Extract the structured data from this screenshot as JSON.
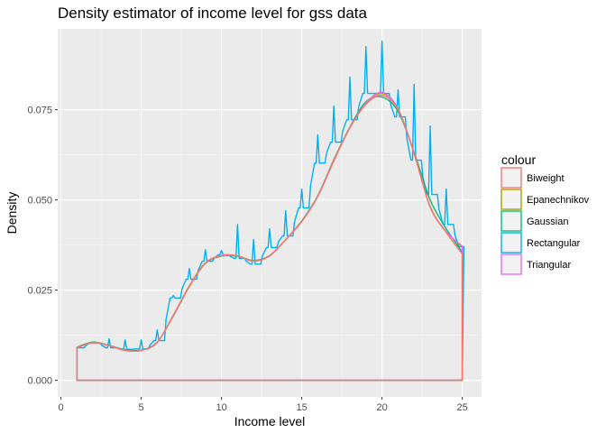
{
  "chart_data": {
    "type": "line",
    "title": "Density estimator of income level for gss data",
    "xlabel": "Income level",
    "ylabel": "Density",
    "xlim": [
      -0.2,
      26.2
    ],
    "ylim": [
      -0.0046,
      0.0974
    ],
    "x_ticks": [
      0,
      5,
      10,
      15,
      20,
      25
    ],
    "x_tick_labels": [
      "0",
      "5",
      "10",
      "15",
      "20",
      "25"
    ],
    "y_ticks": [
      0.0,
      0.025,
      0.05,
      0.075
    ],
    "y_tick_labels": [
      "0.000",
      "0.025",
      "0.050",
      "0.075"
    ],
    "grid": true,
    "legend": {
      "title": "colour",
      "position": "right"
    },
    "series": [
      {
        "name": "Biweight",
        "color": "#F8766D",
        "smooth_points": [
          [
            1,
            0.009
          ],
          [
            2,
            0.0104
          ],
          [
            3,
            0.0096
          ],
          [
            4,
            0.0083
          ],
          [
            5,
            0.0083
          ],
          [
            6,
            0.0105
          ],
          [
            7,
            0.018
          ],
          [
            8,
            0.026
          ],
          [
            9,
            0.0325
          ],
          [
            10,
            0.0345
          ],
          [
            11,
            0.0345
          ],
          [
            12,
            0.033
          ],
          [
            13,
            0.0345
          ],
          [
            14,
            0.039
          ],
          [
            15,
            0.044
          ],
          [
            16,
            0.051
          ],
          [
            17,
            0.061
          ],
          [
            18,
            0.07
          ],
          [
            19,
            0.0765
          ],
          [
            20,
            0.079
          ],
          [
            21,
            0.075
          ],
          [
            22,
            0.063
          ],
          [
            23,
            0.048
          ],
          [
            24,
            0.041
          ],
          [
            25,
            0.035
          ]
        ]
      },
      {
        "name": "Epanechnikov",
        "color": "#A3A500",
        "smooth_points": [
          [
            1,
            0.009
          ],
          [
            2,
            0.0105
          ],
          [
            3,
            0.0096
          ],
          [
            4,
            0.0083
          ],
          [
            5,
            0.0083
          ],
          [
            6,
            0.0105
          ],
          [
            7,
            0.018
          ],
          [
            8,
            0.0262
          ],
          [
            9,
            0.0326
          ],
          [
            10,
            0.0345
          ],
          [
            11,
            0.0345
          ],
          [
            12,
            0.0331
          ],
          [
            13,
            0.0345
          ],
          [
            14,
            0.039
          ],
          [
            15,
            0.044
          ],
          [
            16,
            0.051
          ],
          [
            17,
            0.0608
          ],
          [
            18,
            0.07
          ],
          [
            19,
            0.0768
          ],
          [
            20,
            0.0795
          ],
          [
            21,
            0.0752
          ],
          [
            22,
            0.0628
          ],
          [
            23,
            0.0482
          ],
          [
            24,
            0.0412
          ],
          [
            25,
            0.037
          ]
        ]
      },
      {
        "name": "Gaussian",
        "color": "#00BF7D",
        "smooth_points": [
          [
            1,
            0.0092
          ],
          [
            2,
            0.0106
          ],
          [
            3,
            0.0097
          ],
          [
            4,
            0.0085
          ],
          [
            5,
            0.0084
          ],
          [
            6,
            0.0106
          ],
          [
            7,
            0.0178
          ],
          [
            8,
            0.026
          ],
          [
            9,
            0.0324
          ],
          [
            10,
            0.0344
          ],
          [
            11,
            0.0344
          ],
          [
            12,
            0.0332
          ],
          [
            13,
            0.0346
          ],
          [
            14,
            0.039
          ],
          [
            15,
            0.0442
          ],
          [
            16,
            0.0512
          ],
          [
            17,
            0.0612
          ],
          [
            18,
            0.0702
          ],
          [
            19,
            0.0772
          ],
          [
            20,
            0.0785
          ],
          [
            21,
            0.0745
          ],
          [
            22,
            0.0632
          ],
          [
            23,
            0.05
          ],
          [
            24,
            0.042
          ],
          [
            25,
            0.0355
          ]
        ]
      },
      {
        "name": "Rectangular",
        "color": "#00B0F6",
        "plateaus": [
          [
            1,
            0.009
          ],
          [
            2,
            0.0103
          ],
          [
            3,
            0.009
          ],
          [
            4,
            0.0086
          ],
          [
            5,
            0.0087
          ],
          [
            6,
            0.011
          ],
          [
            7,
            0.0228
          ],
          [
            8,
            0.028
          ],
          [
            9,
            0.033
          ],
          [
            10,
            0.0348
          ],
          [
            11,
            0.0338
          ],
          [
            12,
            0.0322
          ],
          [
            13,
            0.0368
          ],
          [
            14,
            0.04
          ],
          [
            15,
            0.0478
          ],
          [
            16,
            0.0602
          ],
          [
            17,
            0.066
          ],
          [
            18,
            0.0722
          ],
          [
            19,
            0.0795
          ],
          [
            20,
            0.0795
          ],
          [
            21,
            0.073
          ],
          [
            22,
            0.061
          ],
          [
            23,
            0.0515
          ],
          [
            24,
            0.0432
          ],
          [
            25,
            0.037
          ]
        ],
        "spikes": [
          [
            1,
            0.009
          ],
          [
            2,
            0.0103
          ],
          [
            3,
            0.0115
          ],
          [
            4,
            0.0112
          ],
          [
            5,
            0.0112
          ],
          [
            6,
            0.014
          ],
          [
            7,
            0.0235
          ],
          [
            8,
            0.031
          ],
          [
            9,
            0.0362
          ],
          [
            10,
            0.036
          ],
          [
            11,
            0.0432
          ],
          [
            12,
            0.039
          ],
          [
            13,
            0.042
          ],
          [
            14,
            0.047
          ],
          [
            15,
            0.053
          ],
          [
            16,
            0.068
          ],
          [
            17,
            0.076
          ],
          [
            18,
            0.084
          ],
          [
            19,
            0.0925
          ],
          [
            20,
            0.094
          ],
          [
            21,
            0.0805
          ],
          [
            22,
            0.082
          ],
          [
            23,
            0.0705
          ],
          [
            24,
            0.053
          ],
          [
            25,
            0.037
          ]
        ]
      },
      {
        "name": "Triangular",
        "color": "#E76BF3",
        "smooth_points": [
          [
            1,
            0.009
          ],
          [
            2,
            0.0104
          ],
          [
            3,
            0.0096
          ],
          [
            4,
            0.0083
          ],
          [
            5,
            0.0083
          ],
          [
            6,
            0.0105
          ],
          [
            7,
            0.018
          ],
          [
            8,
            0.026
          ],
          [
            9,
            0.0325
          ],
          [
            10,
            0.0346
          ],
          [
            11,
            0.0345
          ],
          [
            12,
            0.033
          ],
          [
            13,
            0.0345
          ],
          [
            14,
            0.039
          ],
          [
            15,
            0.044
          ],
          [
            16,
            0.051
          ],
          [
            17,
            0.061
          ],
          [
            18,
            0.07
          ],
          [
            19,
            0.0768
          ],
          [
            20,
            0.0798
          ],
          [
            21,
            0.0752
          ],
          [
            22,
            0.0628
          ],
          [
            23,
            0.048
          ],
          [
            24,
            0.0412
          ],
          [
            25,
            0.0372
          ]
        ]
      }
    ]
  }
}
